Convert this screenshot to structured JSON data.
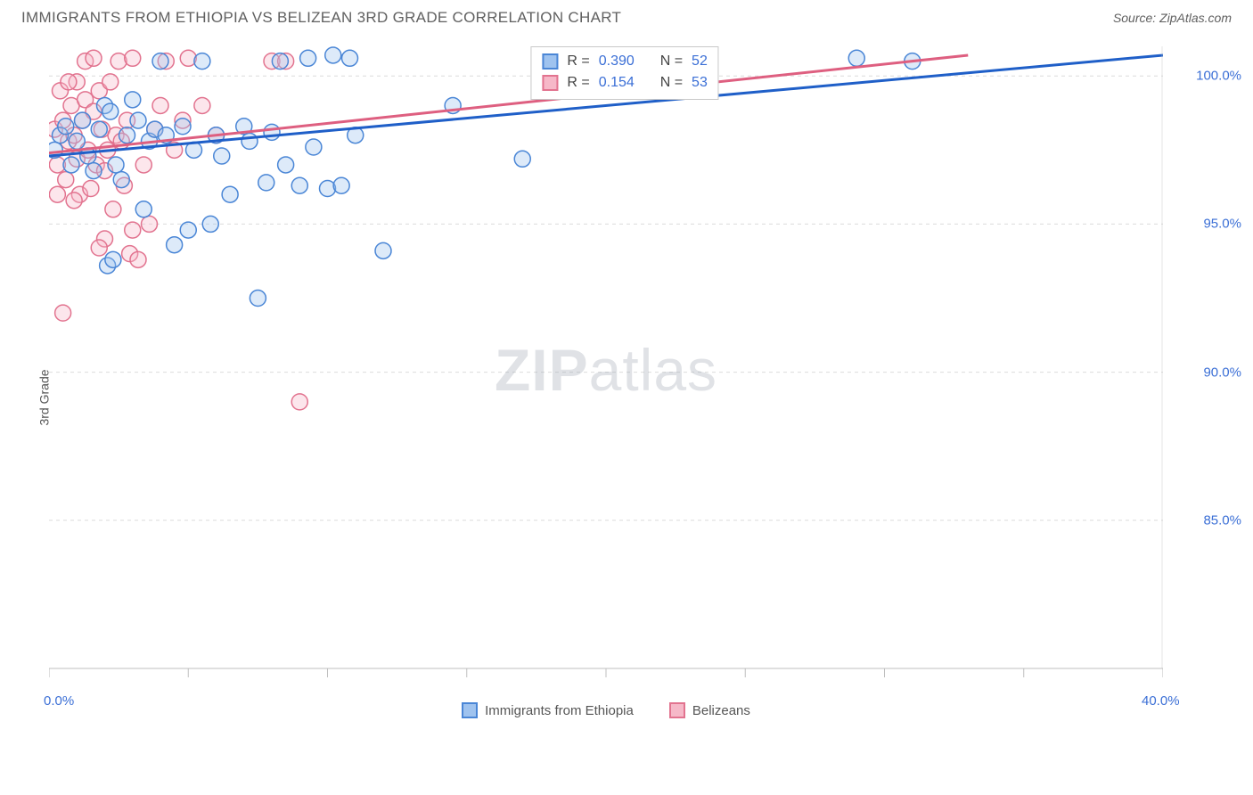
{
  "title": "IMMIGRANTS FROM ETHIOPIA VS BELIZEAN 3RD GRADE CORRELATION CHART",
  "source_label": "Source: ZipAtlas.com",
  "watermark": {
    "part1": "ZIP",
    "part2": "atlas"
  },
  "y_axis_title": "3rd Grade",
  "chart": {
    "type": "scatter-with-regression",
    "background_color": "#ffffff",
    "grid_color": "#dcdcdc",
    "axis_color": "#bfbfbf",
    "tick_color": "#bfbfbf",
    "xlim": [
      0,
      40
    ],
    "ylim": [
      80,
      101
    ],
    "x_ticks_major": [
      0,
      5,
      10,
      15,
      20,
      25,
      30,
      35,
      40
    ],
    "y_ticks_major": [
      85,
      90,
      95,
      100
    ],
    "x_tick_labels": [
      {
        "value": 0,
        "label": "0.0%"
      },
      {
        "value": 40,
        "label": "40.0%"
      }
    ],
    "y_tick_labels": [
      {
        "value": 85,
        "label": "85.0%"
      },
      {
        "value": 90,
        "label": "90.0%"
      },
      {
        "value": 95,
        "label": "95.0%"
      },
      {
        "value": 100,
        "label": "100.0%"
      }
    ],
    "marker_radius": 9,
    "marker_stroke_width": 1.5,
    "marker_fill_opacity": 0.35,
    "regression_line_width": 3,
    "series": [
      {
        "id": "ethiopia",
        "label": "Immigrants from Ethiopia",
        "fill": "#9fc3ef",
        "stroke": "#4a86d6",
        "line_color": "#1f5fc8",
        "regression": {
          "x1": 0,
          "y1": 97.3,
          "x2": 40,
          "y2": 100.7
        },
        "stats": {
          "R": "0.390",
          "N": "52"
        },
        "points": [
          [
            0.2,
            97.5
          ],
          [
            0.4,
            98.0
          ],
          [
            0.6,
            98.3
          ],
          [
            0.8,
            97.0
          ],
          [
            1.0,
            97.8
          ],
          [
            1.2,
            98.5
          ],
          [
            1.4,
            97.3
          ],
          [
            1.6,
            96.8
          ],
          [
            1.8,
            98.2
          ],
          [
            2.0,
            99.0
          ],
          [
            2.2,
            98.8
          ],
          [
            2.4,
            97.0
          ],
          [
            2.6,
            96.5
          ],
          [
            2.8,
            98.0
          ],
          [
            3.0,
            99.2
          ],
          [
            3.2,
            98.5
          ],
          [
            3.4,
            95.5
          ],
          [
            3.6,
            97.8
          ],
          [
            3.8,
            98.2
          ],
          [
            4.0,
            100.5
          ],
          [
            4.2,
            98.0
          ],
          [
            4.5,
            94.3
          ],
          [
            4.8,
            98.3
          ],
          [
            5.0,
            94.8
          ],
          [
            5.2,
            97.5
          ],
          [
            5.5,
            100.5
          ],
          [
            5.8,
            95.0
          ],
          [
            6.0,
            98.0
          ],
          [
            6.2,
            97.3
          ],
          [
            6.5,
            96.0
          ],
          [
            7.0,
            98.3
          ],
          [
            7.2,
            97.8
          ],
          [
            7.5,
            92.5
          ],
          [
            7.8,
            96.4
          ],
          [
            8.0,
            98.1
          ],
          [
            8.3,
            100.5
          ],
          [
            8.5,
            97.0
          ],
          [
            9.0,
            96.3
          ],
          [
            9.3,
            100.6
          ],
          [
            9.5,
            97.6
          ],
          [
            10.0,
            96.2
          ],
          [
            10.2,
            100.7
          ],
          [
            10.5,
            96.3
          ],
          [
            10.8,
            100.6
          ],
          [
            11.0,
            98.0
          ],
          [
            12.0,
            94.1
          ],
          [
            14.5,
            99.0
          ],
          [
            17.0,
            97.2
          ],
          [
            29.0,
            100.6
          ],
          [
            31.0,
            100.5
          ],
          [
            2.1,
            93.6
          ],
          [
            2.3,
            93.8
          ]
        ]
      },
      {
        "id": "belize",
        "label": "Belizeans",
        "fill": "#f6b8c8",
        "stroke": "#e2738f",
        "line_color": "#de5f80",
        "regression": {
          "x1": 0,
          "y1": 97.4,
          "x2": 33,
          "y2": 100.7
        },
        "stats": {
          "R": "0.154",
          "N": "53"
        },
        "points": [
          [
            0.2,
            98.2
          ],
          [
            0.3,
            97.0
          ],
          [
            0.4,
            99.5
          ],
          [
            0.5,
            98.5
          ],
          [
            0.6,
            96.5
          ],
          [
            0.7,
            97.8
          ],
          [
            0.8,
            99.0
          ],
          [
            0.9,
            98.0
          ],
          [
            1.0,
            97.2
          ],
          [
            1.1,
            96.0
          ],
          [
            1.2,
            98.5
          ],
          [
            1.3,
            99.2
          ],
          [
            1.4,
            97.5
          ],
          [
            1.5,
            96.2
          ],
          [
            1.6,
            98.8
          ],
          [
            1.7,
            97.0
          ],
          [
            1.8,
            99.5
          ],
          [
            1.9,
            98.2
          ],
          [
            2.0,
            96.8
          ],
          [
            2.1,
            97.5
          ],
          [
            2.2,
            99.8
          ],
          [
            2.3,
            95.5
          ],
          [
            2.4,
            98.0
          ],
          [
            2.5,
            100.5
          ],
          [
            2.6,
            97.8
          ],
          [
            2.7,
            96.3
          ],
          [
            2.8,
            98.5
          ],
          [
            2.9,
            94.0
          ],
          [
            3.0,
            100.6
          ],
          [
            3.2,
            93.8
          ],
          [
            3.4,
            97.0
          ],
          [
            3.6,
            95.0
          ],
          [
            3.8,
            98.2
          ],
          [
            4.0,
            99.0
          ],
          [
            4.2,
            100.5
          ],
          [
            4.5,
            97.5
          ],
          [
            4.8,
            98.5
          ],
          [
            5.0,
            100.6
          ],
          [
            5.5,
            99.0
          ],
          [
            6.0,
            98.0
          ],
          [
            8.0,
            100.5
          ],
          [
            8.5,
            100.5
          ],
          [
            9.0,
            89.0
          ],
          [
            1.0,
            99.8
          ],
          [
            1.3,
            100.5
          ],
          [
            1.6,
            100.6
          ],
          [
            2.0,
            94.5
          ],
          [
            0.5,
            92.0
          ],
          [
            0.9,
            95.8
          ],
          [
            1.8,
            94.2
          ],
          [
            3.0,
            94.8
          ],
          [
            0.3,
            96.0
          ],
          [
            0.7,
            99.8
          ]
        ]
      }
    ]
  },
  "stats_box": {
    "label_R": "R =",
    "label_N": "N ="
  },
  "legend_swatch_border": 2
}
